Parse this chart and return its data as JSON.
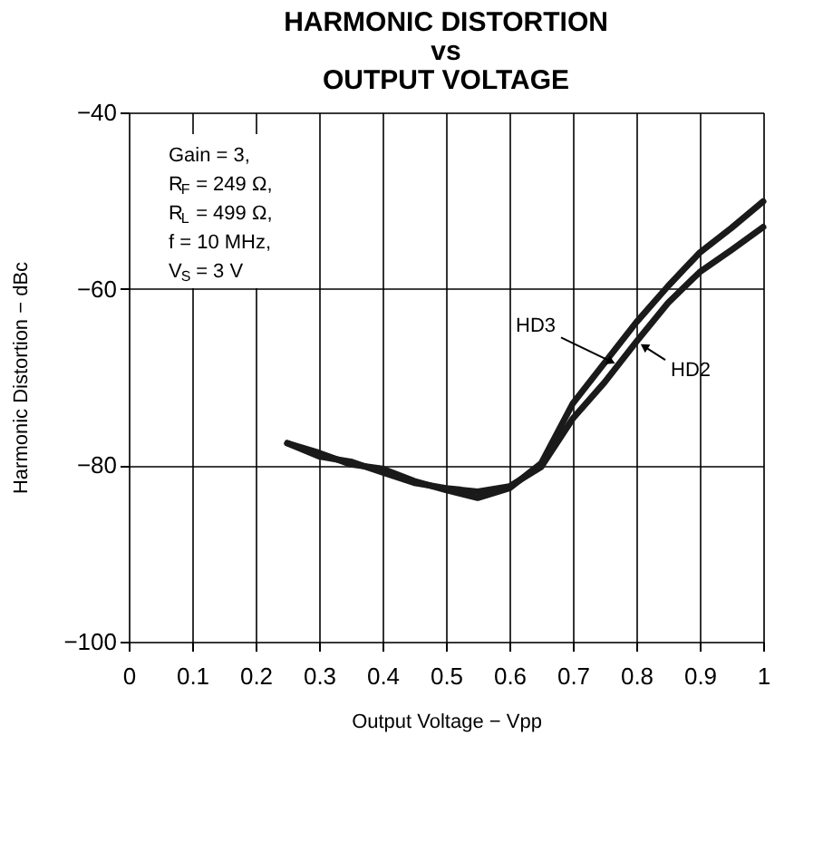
{
  "chart_data": {
    "type": "line",
    "title": [
      "HARMONIC DISTORTION",
      "vs",
      "OUTPUT VOLTAGE"
    ],
    "xlabel": "Output Voltage − Vpp",
    "ylabel": "Harmonic Distortion − dBc",
    "xlim": [
      0,
      1
    ],
    "xticks": [
      0,
      0.1,
      0.2,
      0.3,
      0.4,
      0.5,
      0.6,
      0.7,
      0.8,
      0.9,
      1
    ],
    "ylim": [
      -100,
      -40
    ],
    "yticks": [
      -100,
      -80,
      -60,
      -40
    ],
    "grid": true,
    "legend": false,
    "line_style": "solid",
    "marker": "none",
    "x": [
      0.25,
      0.3,
      0.35,
      0.4,
      0.45,
      0.5,
      0.55,
      0.6,
      0.65,
      0.7,
      0.75,
      0.8,
      0.85,
      0.9,
      0.95,
      1.0
    ],
    "series": [
      {
        "name": "HD3",
        "color": "#1a1a1a",
        "values": [
          -77.5,
          -78.6,
          -79.9,
          -80.4,
          -81.8,
          -82.8,
          -83.7,
          -82.6,
          -79.8,
          -73,
          -68.4,
          -63.8,
          -59.7,
          -55.9,
          -53.1,
          -50.1
        ]
      },
      {
        "name": "HD2",
        "color": "#1a1a1a",
        "values": [
          -77.5,
          -79,
          -79.6,
          -80.8,
          -82,
          -82.6,
          -83,
          -82.4,
          -80.2,
          -74.7,
          -70.6,
          -66,
          -61.6,
          -58.1,
          -55.6,
          -53
        ]
      }
    ],
    "annotations": [
      "Gain = 3,",
      "R$_{F}$ = 249 Ω,",
      "R$_{L}$ = 499 Ω,",
      "f = 10 MHz,",
      "V$_{S}$ = 3 V"
    ]
  }
}
